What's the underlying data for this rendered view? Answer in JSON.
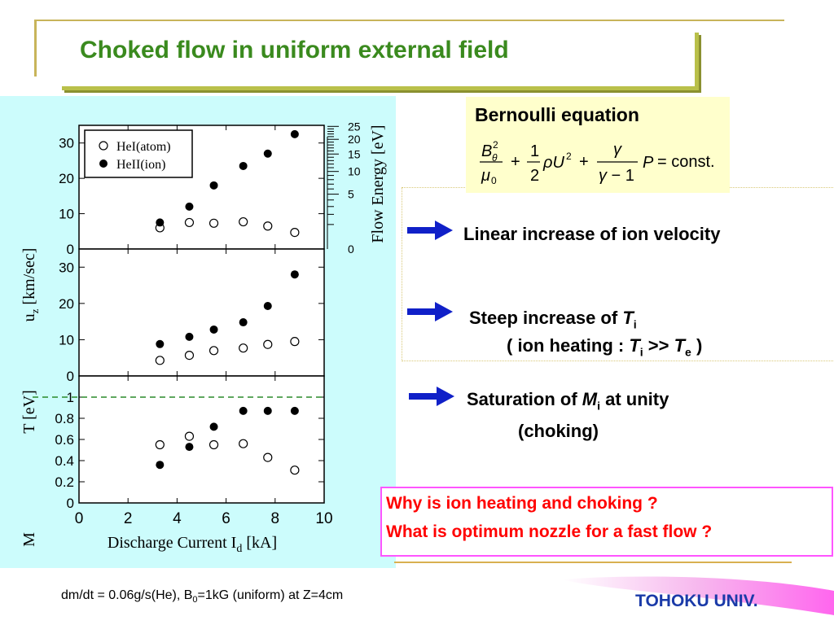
{
  "title": "Choked flow in uniform external field",
  "bernoulli": {
    "title": "Bernoulli equation",
    "equation": "B_θ²/μ₀ + ½ρU² + γ/(γ−1) P = const."
  },
  "statements": {
    "linear": "Linear increase of ion velocity",
    "steep_a": "Steep increase of ",
    "steep_Ti": "T",
    "steep_Ti_sub": "i",
    "steep_b1": "( ion heating : ",
    "steep_b_T": "T",
    "steep_b_i": "i",
    "steep_b_gt": " >> ",
    "steep_b_Te": "T",
    "steep_b_e": "e",
    "steep_b_close": " )",
    "sat_a": "Saturation of ",
    "sat_M": "M",
    "sat_i": "i",
    "sat_b": " at unity",
    "sat_c": "(choking)"
  },
  "questions": [
    "Why is ion heating and choking ?",
    "What is optimum nozzle for a fast flow ?"
  ],
  "footnote": {
    "a": "dm/dt = 0.06g/s(He), B",
    "sub": "0",
    "b": "=1kG (uniform) at Z=4cm"
  },
  "university": "TOHOKU UNIV.",
  "colors": {
    "title_green": "#3a8a1e",
    "panel_bg": "#ccfcfc",
    "arrow_blue": "#1020c8",
    "question_red": "#ff0000",
    "university_blue": "#1a3aa8"
  },
  "chart_data": {
    "type": "scatter",
    "xlabel": "Discharge Current I",
    "xlabel_sub": "d",
    "xlabel_unit": " [kA]",
    "xlim": [
      0,
      10
    ],
    "xticks": [
      "0",
      "2",
      "4",
      "6",
      "8",
      "10"
    ],
    "x": [
      3.3,
      4.5,
      5.5,
      6.7,
      7.7,
      8.8
    ],
    "legend": {
      "placement": "top-left",
      "entries": [
        "HeI(atom)",
        "HeII(ion)"
      ]
    },
    "panels": [
      {
        "ylabel": "u",
        "ylabel_sub": "z",
        "ylabel_unit": " [km/sec]",
        "ylim": [
          0,
          35
        ],
        "yticks": [
          "0",
          "10",
          "20",
          "30"
        ],
        "series": [
          {
            "name": "HeI(atom)",
            "marker": "open",
            "values": [
              6,
              7.5,
              7.3,
              7.7,
              6.5,
              4.7
            ]
          },
          {
            "name": "HeII(ion)",
            "marker": "filled",
            "values": [
              7.5,
              12,
              18,
              23.5,
              27,
              32.5
            ]
          }
        ],
        "secondary_axis": {
          "label": "Flow Energy [eV]",
          "ticks": [
            "0",
            "5",
            "10",
            "15",
            "20",
            "25"
          ]
        }
      },
      {
        "ylabel": "T [eV]",
        "ylim": [
          0,
          35
        ],
        "yticks": [
          "0",
          "10",
          "20",
          "30"
        ],
        "series": [
          {
            "name": "HeI(atom)",
            "marker": "open",
            "values": [
              4.3,
              5.7,
              7,
              7.7,
              8.7,
              9.5
            ]
          },
          {
            "name": "HeII(ion)",
            "marker": "filled",
            "values": [
              8.8,
              10.8,
              12.8,
              14.8,
              19.3,
              28
            ]
          }
        ]
      },
      {
        "ylabel": "M",
        "ylim": [
          0,
          1.2
        ],
        "yticks": [
          "0",
          "0.2",
          "0.4",
          "0.6",
          "0.8",
          "1"
        ],
        "reference_line": 1,
        "series": [
          {
            "name": "HeI(atom)",
            "marker": "open",
            "values": [
              0.55,
              0.63,
              0.55,
              0.56,
              0.43,
              0.31
            ]
          },
          {
            "name": "HeII(ion)",
            "marker": "filled",
            "values": [
              0.36,
              0.53,
              0.72,
              0.87,
              0.87,
              0.87
            ]
          }
        ]
      }
    ]
  }
}
